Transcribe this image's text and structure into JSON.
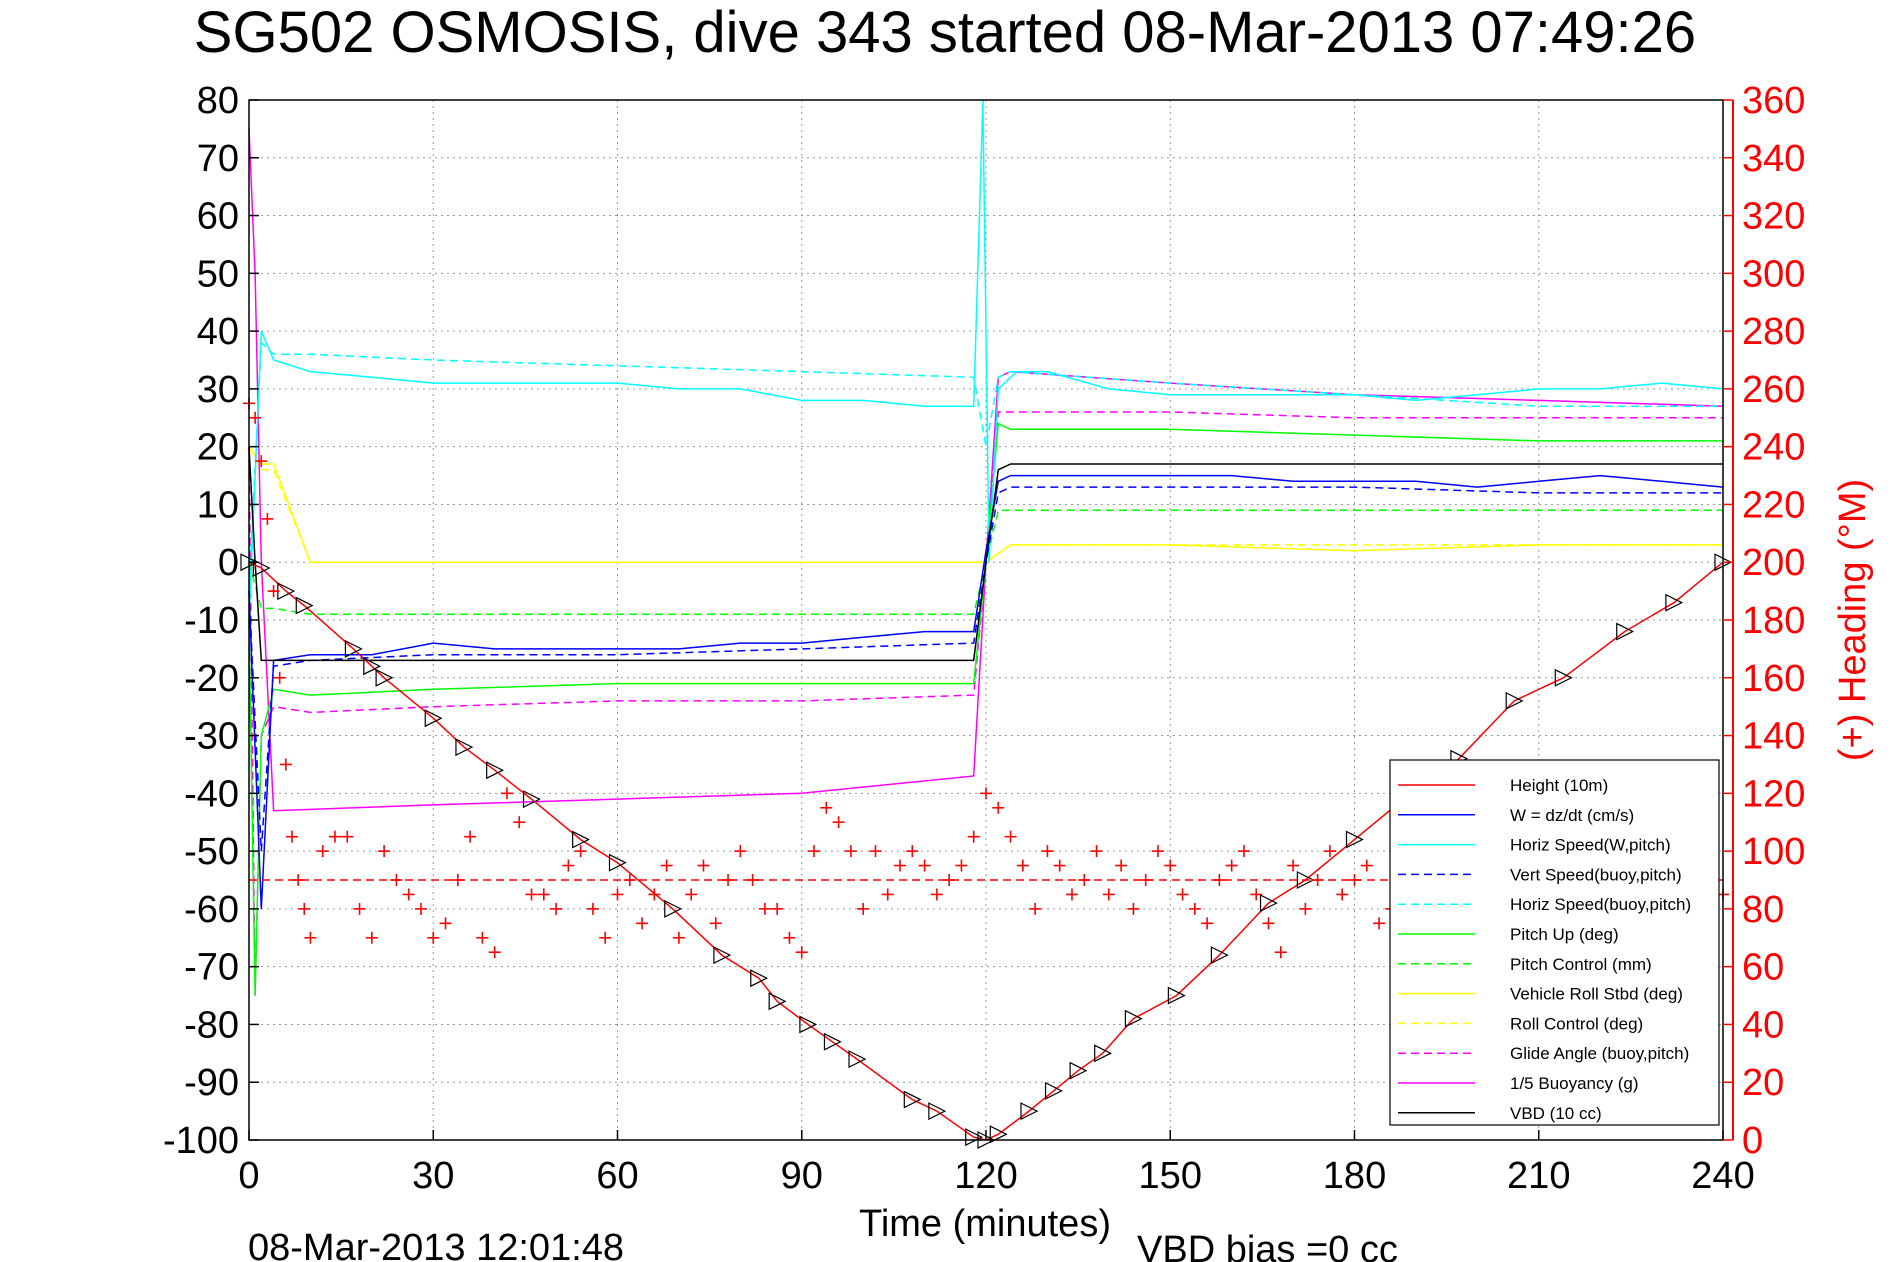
{
  "chart_data": {
    "type": "line",
    "title": "SG502 OSMOSIS, dive 343 started 08-Mar-2013 07:49:26",
    "xlabel": "Time (minutes)",
    "ylabel_right": "(+) Heading (°M)",
    "footer_left": "08-Mar-2013 12:01:48",
    "footer_right": "VBD bias =0 cc",
    "xlim": [
      0,
      240
    ],
    "ylim": [
      -100,
      80
    ],
    "ylim_right": [
      0,
      360
    ],
    "xticks": [
      "0",
      "30",
      "60",
      "90",
      "120",
      "150",
      "180",
      "210",
      "240"
    ],
    "yticks": [
      "80",
      "70",
      "60",
      "50",
      "40",
      "30",
      "20",
      "10",
      "0",
      "-10",
      "-20",
      "-30",
      "-40",
      "-50",
      "-60",
      "-70",
      "-80",
      "-90",
      "-100"
    ],
    "yticks_right": [
      "360",
      "340",
      "320",
      "300",
      "280",
      "260",
      "240",
      "220",
      "200",
      "180",
      "160",
      "140",
      "120",
      "100",
      "80",
      "60",
      "40",
      "20",
      "0"
    ],
    "grid": true,
    "legend_position": "bottom-right",
    "series": [
      {
        "name": "Height (10m)",
        "color": "#ff0000",
        "style": "solid",
        "marker": "triangle",
        "x": [
          0,
          2,
          6,
          9,
          17,
          20,
          22,
          30,
          35,
          40,
          46,
          54,
          60,
          69,
          77,
          83,
          86,
          91,
          95,
          99,
          108,
          112,
          118,
          120,
          122,
          127,
          131,
          135,
          139,
          144,
          151,
          158,
          166,
          172,
          180,
          188,
          197,
          206,
          214,
          224,
          232,
          240
        ],
        "y": [
          0,
          -1,
          -5,
          -7.5,
          -15,
          -18,
          -20,
          -27,
          -32,
          -36,
          -41,
          -48,
          -52,
          -60,
          -68,
          -72,
          -76,
          -80,
          -83,
          -86,
          -93,
          -95,
          -99.5,
          -100,
          -99,
          -95,
          -91.5,
          -88,
          -85,
          -79,
          -75,
          -68,
          -59,
          -55,
          -48,
          -41,
          -34,
          -24,
          -20,
          -12,
          -7,
          0
        ]
      },
      {
        "name": "W = dz/dt (cm/s)",
        "color": "#0000ff",
        "style": "solid",
        "x": [
          0,
          2,
          4,
          10,
          20,
          30,
          40,
          50,
          60,
          70,
          80,
          90,
          100,
          110,
          118,
          120,
          122,
          124,
          130,
          140,
          150,
          160,
          170,
          180,
          190,
          200,
          210,
          220,
          230,
          240
        ],
        "y": [
          -5,
          -60,
          -17,
          -16,
          -16,
          -14,
          -15,
          -15,
          -15,
          -15,
          -14,
          -14,
          -13,
          -12,
          -12,
          2,
          14,
          15,
          15,
          15,
          15,
          15,
          14,
          14,
          14,
          13,
          14,
          15,
          14,
          13
        ]
      },
      {
        "name": "Horiz Speed(W,pitch)",
        "color": "#00ffff",
        "style": "solid",
        "x": [
          0,
          2,
          4,
          10,
          20,
          30,
          40,
          50,
          60,
          70,
          80,
          90,
          100,
          110,
          118,
          119.5,
          120.5,
          122,
          125,
          130,
          140,
          150,
          160,
          170,
          180,
          190,
          200,
          210,
          220,
          230,
          240
        ],
        "y": [
          -10,
          40,
          35,
          33,
          32,
          31,
          31,
          31,
          31,
          30,
          30,
          28,
          28,
          27,
          27,
          80,
          0,
          30,
          33,
          33,
          30,
          29,
          29,
          29,
          29,
          28,
          29,
          30,
          30,
          31,
          30
        ]
      },
      {
        "name": "Vert Speed(buoy,pitch)",
        "color": "#0000ff",
        "style": "dashed",
        "x": [
          0,
          2,
          4,
          10,
          30,
          60,
          90,
          118,
          120,
          122,
          124,
          150,
          180,
          210,
          240
        ],
        "y": [
          -5,
          -50,
          -18,
          -17,
          -16,
          -16,
          -15,
          -14,
          0,
          12,
          13,
          13,
          13,
          12,
          12
        ]
      },
      {
        "name": "Horiz Speed(buoy,pitch)",
        "color": "#00ffff",
        "style": "dashed",
        "x": [
          0,
          2,
          4,
          10,
          30,
          60,
          90,
          118,
          120,
          122,
          124,
          150,
          180,
          210,
          240
        ],
        "y": [
          -5,
          38,
          36,
          36,
          35,
          34,
          33,
          32,
          20,
          32,
          33,
          31,
          29,
          27,
          27
        ]
      },
      {
        "name": "Pitch Up (deg)",
        "color": "#00ff00",
        "style": "solid",
        "x": [
          0,
          1,
          2,
          4,
          10,
          30,
          60,
          90,
          118,
          120,
          122,
          124,
          150,
          180,
          210,
          240
        ],
        "y": [
          -10,
          -75,
          -30,
          -22,
          -23,
          -22,
          -21,
          -21,
          -21,
          0,
          24,
          23,
          23,
          22,
          21,
          21
        ]
      },
      {
        "name": "Pitch Control (mm)",
        "color": "#00ff00",
        "style": "dashed",
        "x": [
          0,
          2,
          4,
          10,
          30,
          60,
          90,
          118,
          120,
          122,
          124,
          150,
          180,
          210,
          240
        ],
        "y": [
          0,
          -8,
          -8,
          -9,
          -9,
          -9,
          -9,
          -9,
          0,
          9,
          9,
          9,
          9,
          9,
          9
        ]
      },
      {
        "name": "Vehicle Roll Stbd (deg)",
        "color": "#ffff00",
        "style": "solid",
        "x": [
          0,
          2,
          4,
          10,
          20,
          40,
          60,
          80,
          100,
          118,
          120,
          124,
          150,
          180,
          210,
          240
        ],
        "y": [
          20,
          17,
          17,
          0,
          0,
          0,
          0,
          0,
          0,
          0,
          0,
          3,
          3,
          2,
          3,
          3
        ]
      },
      {
        "name": "Roll Control (deg)",
        "color": "#ffff00",
        "style": "dashed",
        "x": [
          0,
          2,
          4,
          10,
          60,
          118,
          120,
          124,
          240
        ],
        "y": [
          20,
          16,
          16,
          0,
          0,
          0,
          0,
          3,
          3
        ]
      },
      {
        "name": "Glide Angle (buoy,pitch)",
        "color": "#ff00ff",
        "style": "dashed",
        "x": [
          0,
          1,
          2,
          4,
          10,
          30,
          60,
          90,
          118,
          120,
          122,
          124,
          150,
          180,
          210,
          240
        ],
        "y": [
          20,
          -75,
          -30,
          -25,
          -26,
          -25,
          -24,
          -24,
          -23,
          0,
          26,
          26,
          26,
          25,
          25,
          25
        ]
      },
      {
        "name": "1/5 Buoyancy (g)",
        "color": "#ff00ff",
        "style": "solid",
        "x": [
          0,
          1,
          2,
          4,
          30,
          60,
          90,
          118,
          120,
          122,
          124,
          150,
          180,
          210,
          240
        ],
        "y": [
          75,
          50,
          0,
          -43,
          -42,
          -41,
          -40,
          -37,
          0,
          32,
          33,
          31,
          29,
          28,
          27
        ]
      },
      {
        "name": "VBD (10 cc)",
        "color": "#000000",
        "style": "solid",
        "x": [
          0,
          1,
          2,
          4,
          30,
          60,
          90,
          118,
          120,
          122,
          124,
          150,
          180,
          210,
          240
        ],
        "y": [
          20,
          0,
          -17,
          -17,
          -17,
          -17,
          -17,
          -17,
          0,
          16,
          17,
          17,
          17,
          17,
          17
        ]
      }
    ],
    "heading": {
      "name": "(+) Heading",
      "color": "#ff0000",
      "mean_line_y": 90,
      "x": [
        0,
        1,
        2,
        3,
        4,
        5,
        6,
        7,
        8,
        9,
        10,
        12,
        14,
        16,
        18,
        20,
        22,
        24,
        26,
        28,
        30,
        32,
        34,
        36,
        38,
        40,
        42,
        44,
        46,
        48,
        50,
        52,
        54,
        56,
        58,
        60,
        62,
        64,
        66,
        68,
        70,
        72,
        74,
        76,
        78,
        80,
        82,
        84,
        86,
        88,
        90,
        92,
        94,
        96,
        98,
        100,
        102,
        104,
        106,
        108,
        110,
        112,
        114,
        116,
        118,
        120,
        122,
        124,
        126,
        128,
        130,
        132,
        134,
        136,
        138,
        140,
        142,
        144,
        146,
        148,
        150,
        152,
        154,
        156,
        158,
        160,
        162,
        164,
        166,
        168,
        170,
        172,
        174,
        176,
        178,
        180,
        182,
        184,
        186,
        188,
        190,
        192,
        194,
        196,
        198,
        200,
        202,
        204,
        206,
        208,
        210,
        212,
        214,
        216,
        218,
        220,
        222,
        224,
        226,
        228,
        230,
        232,
        234,
        236,
        238,
        240
      ],
      "y": [
        255,
        250,
        235,
        215,
        190,
        160,
        130,
        105,
        90,
        80,
        70,
        100,
        105,
        105,
        80,
        70,
        100,
        90,
        85,
        80,
        70,
        75,
        90,
        105,
        70,
        65,
        120,
        110,
        85,
        85,
        80,
        95,
        100,
        80,
        70,
        85,
        90,
        75,
        85,
        95,
        70,
        85,
        95,
        75,
        90,
        100,
        90,
        80,
        80,
        70,
        65,
        100,
        115,
        110,
        100,
        80,
        100,
        85,
        95,
        100,
        95,
        85,
        90,
        95,
        105,
        120,
        115,
        105,
        95,
        80,
        100,
        95,
        85,
        90,
        100,
        85,
        95,
        80,
        90,
        100,
        95,
        85,
        80,
        75,
        90,
        95,
        100,
        85,
        75,
        65,
        95,
        80,
        90,
        100,
        85,
        90,
        95,
        75,
        80,
        90,
        100,
        95,
        85,
        80,
        95,
        105,
        85,
        85,
        75,
        90,
        100,
        95,
        85,
        90,
        80,
        90,
        95,
        85,
        90,
        85,
        90,
        80,
        90,
        95,
        85,
        85
      ]
    }
  },
  "legend": [
    {
      "label": "Height (10m)",
      "color": "#ff0000",
      "style": "solid"
    },
    {
      "label": "W = dz/dt (cm/s)",
      "color": "#0000ff",
      "style": "solid"
    },
    {
      "label": "Horiz Speed(W,pitch)",
      "color": "#00ffff",
      "style": "solid"
    },
    {
      "label": "Vert Speed(buoy,pitch)",
      "color": "#0000ff",
      "style": "dashed"
    },
    {
      "label": "Horiz Speed(buoy,pitch)",
      "color": "#00ffff",
      "style": "dashed"
    },
    {
      "label": "Pitch Up (deg)",
      "color": "#00ff00",
      "style": "solid"
    },
    {
      "label": "Pitch Control (mm)",
      "color": "#00ff00",
      "style": "dashed"
    },
    {
      "label": "Vehicle Roll Stbd (deg)",
      "color": "#ffff00",
      "style": "solid"
    },
    {
      "label": "Roll Control (deg)",
      "color": "#ffff00",
      "style": "dashed"
    },
    {
      "label": "Glide Angle (buoy,pitch)",
      "color": "#ff00ff",
      "style": "dashed"
    },
    {
      "label": "1/5 Buoyancy (g)",
      "color": "#ff00ff",
      "style": "solid"
    },
    {
      "label": "VBD (10 cc)",
      "color": "#000000",
      "style": "solid"
    }
  ]
}
